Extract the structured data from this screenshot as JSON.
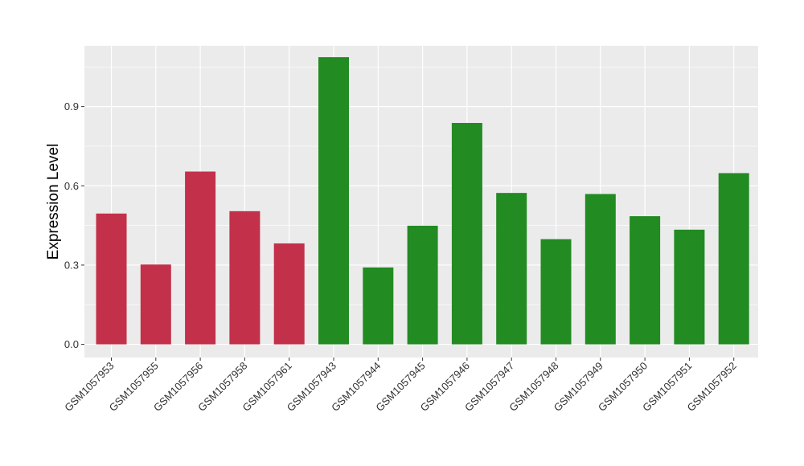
{
  "chart_data": {
    "type": "bar",
    "title": "",
    "xlabel": "",
    "ylabel": "Expression Level",
    "ylim": [
      -0.05,
      1.13
    ],
    "yticks": [
      0.0,
      0.3,
      0.6,
      0.9
    ],
    "ytick_labels": [
      "0.0",
      "0.3",
      "0.6",
      "0.9"
    ],
    "grid": true,
    "legend": "none",
    "categories": [
      "GSM1057953",
      "GSM1057955",
      "GSM1057956",
      "GSM1057958",
      "GSM1057961",
      "GSM1057943",
      "GSM1057944",
      "GSM1057945",
      "GSM1057946",
      "GSM1057947",
      "GSM1057948",
      "GSM1057949",
      "GSM1057950",
      "GSM1057951",
      "GSM1057952"
    ],
    "values": [
      0.495,
      0.302,
      0.654,
      0.504,
      0.382,
      1.087,
      0.291,
      0.449,
      0.838,
      0.573,
      0.398,
      0.569,
      0.485,
      0.434,
      0.648
    ],
    "bar_colors": [
      "#c3304a",
      "#c3304a",
      "#c3304a",
      "#c3304a",
      "#c3304a",
      "#228b22",
      "#228b22",
      "#228b22",
      "#228b22",
      "#228b22",
      "#228b22",
      "#228b22",
      "#228b22",
      "#228b22",
      "#228b22"
    ],
    "panel_background": "#ebebeb",
    "grid_color": "#ffffff"
  }
}
